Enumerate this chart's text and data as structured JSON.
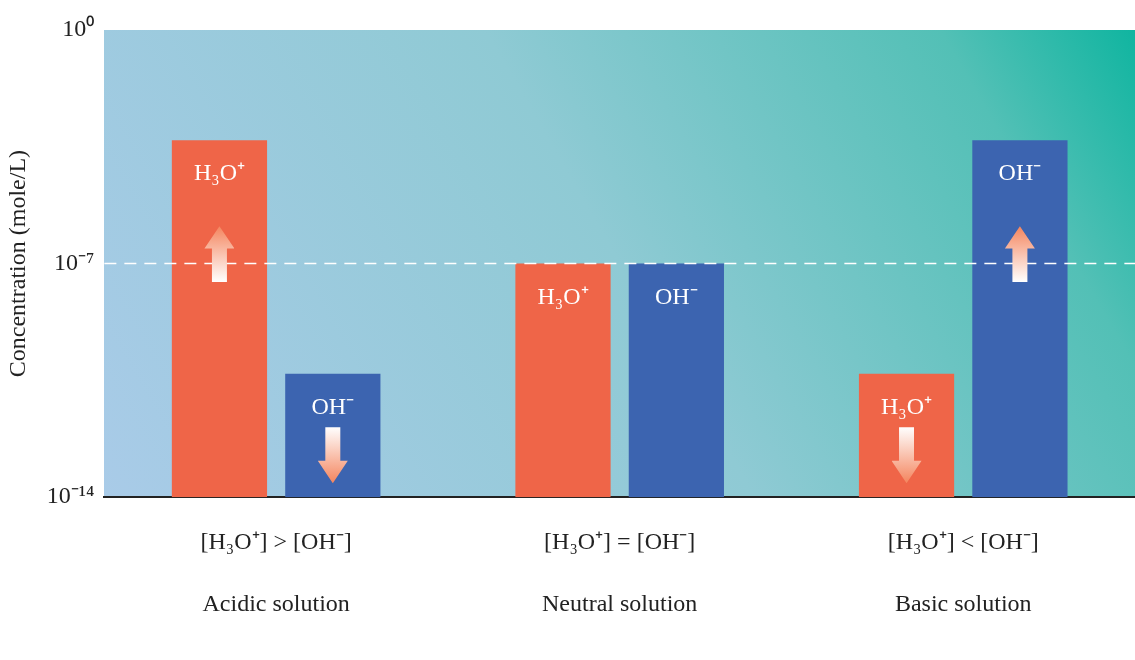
{
  "chart_data": {
    "type": "bar",
    "ylabel": "Concentration (mole/L)",
    "categories": [
      "[H₃O⁺] > [OH⁻]\nAcidic solution",
      "[H₃O⁺] = [OH⁻]\nNeutral solution",
      "[H₃O⁺] < [OH⁻]\nBasic solution"
    ],
    "series": [
      {
        "name": "H₃O⁺",
        "color": "#ef6548",
        "values": [
          0.0005,
          1e-07,
          5e-11
        ]
      },
      {
        "name": "OH⁻",
        "color": "#3c64b0",
        "values": [
          5e-11,
          1e-07,
          0.0005
        ]
      }
    ],
    "log": true,
    "ylim": [
      1e-14,
      1
    ],
    "yticks": [
      {
        "value": 1e-14,
        "label": "10⁻¹⁴"
      },
      {
        "value": 1e-07,
        "label": "10⁻⁷"
      },
      {
        "value": 1,
        "label": "10⁰"
      }
    ],
    "ref_lines": [
      {
        "axis": "y",
        "value": 1e-07,
        "color": "#ffffff",
        "line_style": "dashed"
      }
    ],
    "grid": false,
    "legend": false
  }
}
